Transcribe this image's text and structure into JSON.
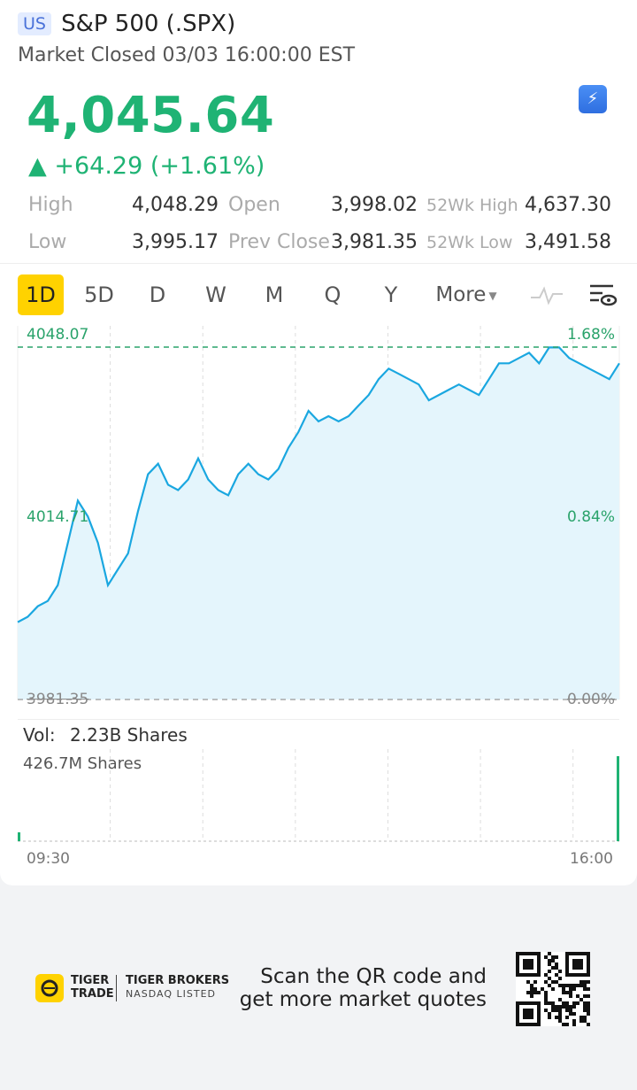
{
  "header": {
    "market_badge": "US",
    "title": "S&P 500 (.SPX)",
    "status": "Market Closed 03/03 16:00:00 EST"
  },
  "quote": {
    "price": "4,045.64",
    "change": "▲ +64.29 (+1.61%)",
    "color_up": "#1fb374",
    "high_label": "High",
    "high": "4,048.29",
    "open_label": "Open",
    "open": "3,998.02",
    "wk52_high_label": "52Wk High",
    "wk52_high": "4,637.30",
    "low_label": "Low",
    "low": "3,995.17",
    "prev_close_label": "Prev Close",
    "prev_close": "3,981.35",
    "wk52_low_label": "52Wk Low",
    "wk52_low": "3,491.58"
  },
  "tabs": [
    "1D",
    "5D",
    "D",
    "W",
    "M",
    "Q",
    "Y"
  ],
  "more_label": "More",
  "chart": {
    "y_top": "4048.07",
    "y_mid": "4014.71",
    "y_base": "3981.35",
    "pct_top": "1.68%",
    "pct_mid": "0.84%",
    "pct_base": "0.00%",
    "line_color": "#1aa7e0"
  },
  "chart_data": {
    "type": "area",
    "x_start": "09:30",
    "x_end": "16:00",
    "ylim": [
      3981.35,
      4048.07
    ],
    "values": [
      3996,
      3997,
      3999,
      4000,
      4003,
      4011,
      4019,
      4016,
      4011,
      4003,
      4006,
      4009,
      4017,
      4024,
      4026,
      4022,
      4021,
      4023,
      4027,
      4023,
      4021,
      4020,
      4024,
      4026,
      4024,
      4023,
      4025,
      4029,
      4032,
      4036,
      4034,
      4035,
      4034,
      4035,
      4037,
      4039,
      4042,
      4044,
      4043,
      4042,
      4041,
      4038,
      4039,
      4040,
      4041,
      4040,
      4039,
      4042,
      4045,
      4045,
      4046,
      4047,
      4045,
      4048,
      4048,
      4046,
      4045,
      4044,
      4043,
      4042,
      4045
    ],
    "volume_label": "Vol:",
    "volume": "2.23B Shares",
    "volume_max": "426.7M Shares"
  },
  "footer": {
    "brand_line1": "TIGER",
    "brand_line2": "TRADE",
    "brand2_line1": "TIGER BROKERS",
    "brand2_line2": "NASDAQ LISTED",
    "scan_line1": "Scan the QR code and",
    "scan_line2": "get more market quotes"
  }
}
